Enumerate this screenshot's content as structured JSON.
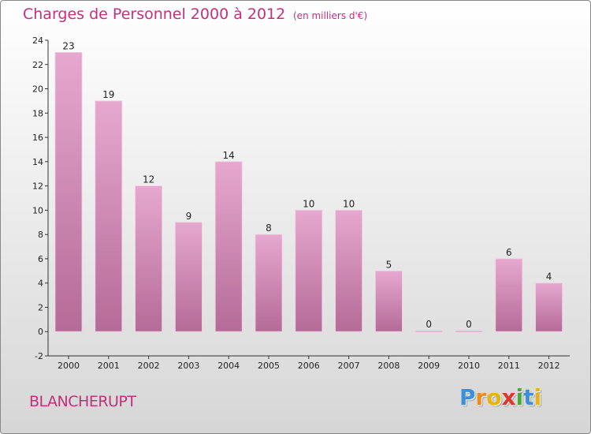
{
  "title": "Charges de Personnel 2000 à 2012",
  "unit_note": "(en milliers d'€)",
  "commune": "BLANCHERUPT",
  "logo": {
    "letters": [
      "P",
      "r",
      "o",
      "x",
      "i",
      "t",
      "i"
    ],
    "colors": [
      "#3d8fd6",
      "#f08a1c",
      "#e9b20f",
      "#d93a2b",
      "#4aa83a",
      "#3d8fd6",
      "#e9b20f"
    ]
  },
  "colors": {
    "title": "#c2307a",
    "bar_light": "#e6a8cf",
    "bar_dark": "#b46b97"
  },
  "chart_data": {
    "type": "bar",
    "categories": [
      "2000",
      "2001",
      "2002",
      "2003",
      "2004",
      "2005",
      "2006",
      "2007",
      "2008",
      "2009",
      "2010",
      "2011",
      "2012"
    ],
    "values": [
      23,
      19,
      12,
      9,
      14,
      8,
      10,
      10,
      5,
      0,
      0,
      6,
      4
    ],
    "data_labels": [
      "23",
      "19",
      "12",
      "9",
      "14",
      "8",
      "10",
      "10",
      "5",
      "0",
      "0",
      "6",
      "4"
    ],
    "title": "Charges de Personnel 2000 à 2012",
    "xlabel": "",
    "ylabel": "",
    "ylim": [
      -2,
      24
    ],
    "yticks": [
      -2,
      0,
      2,
      4,
      6,
      8,
      10,
      12,
      14,
      16,
      18,
      20,
      22,
      24
    ],
    "grid": false,
    "legend": "none"
  }
}
